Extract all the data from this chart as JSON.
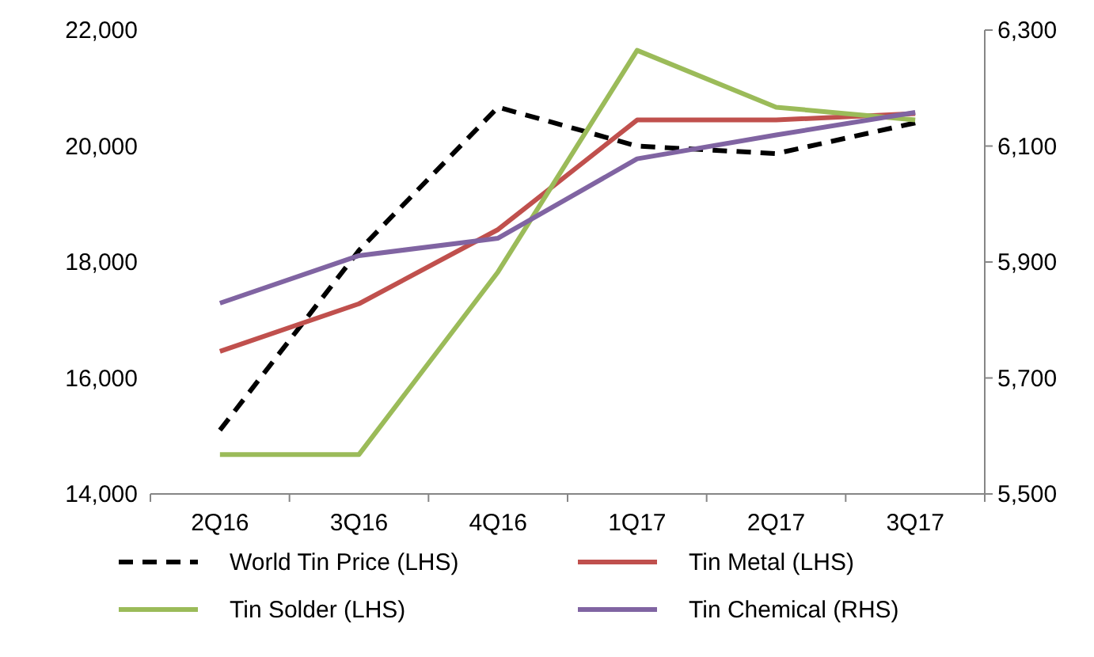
{
  "chart_data": {
    "type": "line",
    "categories": [
      "2Q16",
      "3Q16",
      "4Q16",
      "1Q17",
      "2Q17",
      "3Q17"
    ],
    "series": [
      {
        "name": "World Tin Price (LHS)",
        "color": "#000000",
        "line_style": "dashed",
        "values": [
          15100,
          18200,
          20670,
          20000,
          19870,
          20400
        ]
      },
      {
        "name": "Tin Metal (LHS)",
        "color": "#c0504d",
        "values": [
          16460,
          17280,
          18560,
          20450,
          20450,
          20560
        ]
      },
      {
        "name": "Tin Solder (LHS)",
        "color": "#9bbb59",
        "values": [
          14680,
          14680,
          17830,
          21650,
          20670,
          20450
        ]
      },
      {
        "name": "Tin Chemical (RHS)",
        "color": "#8064a2",
        "axis": "y2",
        "values": [
          5829,
          5911,
          5941,
          6078,
          6119,
          6158
        ]
      }
    ],
    "ylim": [
      14000,
      22000
    ],
    "yticks": [
      {
        "value": 14000,
        "label": "14,000"
      },
      {
        "value": 16000,
        "label": "16,000"
      },
      {
        "value": 18000,
        "label": "18,000"
      },
      {
        "value": 20000,
        "label": "20,000"
      },
      {
        "value": 22000,
        "label": "22,000"
      }
    ],
    "y2lim": [
      5500,
      6300
    ],
    "y2ticks": [
      {
        "value": 5500,
        "label": "5,500"
      },
      {
        "value": 5700,
        "label": "5,700"
      },
      {
        "value": 5900,
        "label": "5,900"
      },
      {
        "value": 6100,
        "label": "6,100"
      },
      {
        "value": 6300,
        "label": "6,300"
      }
    ],
    "grid": false,
    "legend": "bottom",
    "marker": "none",
    "line_style": "solid"
  }
}
